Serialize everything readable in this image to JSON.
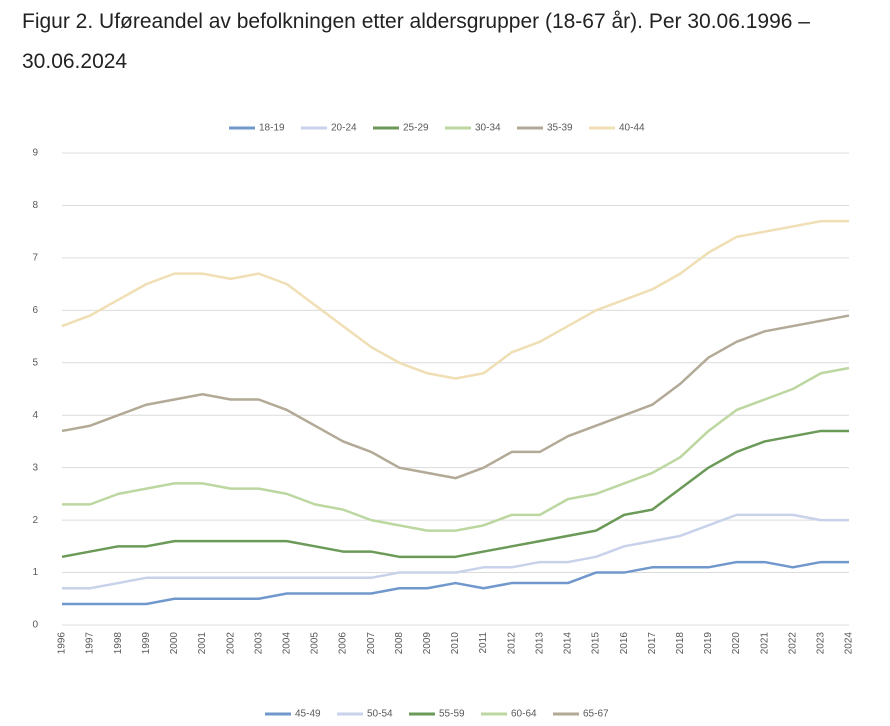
{
  "chart_data": [
    {
      "type": "line",
      "title": "Figur 2. Uføreandel av befolkningen etter aldersgrupper (18-67 år). Per 30.06.1996 – 30.06.2024",
      "x": [
        1996,
        1997,
        1998,
        1999,
        2000,
        2001,
        2002,
        2003,
        2004,
        2005,
        2006,
        2007,
        2008,
        2009,
        2010,
        2011,
        2012,
        2013,
        2014,
        2015,
        2016,
        2017,
        2018,
        2019,
        2020,
        2021,
        2022,
        2023,
        2024
      ],
      "xlim": [
        1996,
        2024
      ],
      "ylim": [
        0,
        9
      ],
      "yticks": [
        0,
        1,
        2,
        3,
        4,
        5,
        6,
        7,
        8,
        9
      ],
      "grid": true,
      "legend": "top",
      "series": [
        {
          "name": "18-19",
          "color": "#7098cc",
          "values": [
            0.4,
            0.4,
            0.4,
            0.4,
            0.5,
            0.5,
            0.5,
            0.5,
            0.6,
            0.6,
            0.6,
            0.6,
            0.7,
            0.7,
            0.8,
            0.7,
            0.8,
            0.8,
            0.8,
            1.0,
            1.0,
            1.1,
            1.1,
            1.1,
            1.2,
            1.2,
            1.1,
            1.2,
            1.2
          ]
        },
        {
          "name": "20-24",
          "color": "#c8d2ea",
          "values": [
            0.7,
            0.7,
            0.8,
            0.9,
            0.9,
            0.9,
            0.9,
            0.9,
            0.9,
            0.9,
            0.9,
            0.9,
            1.0,
            1.0,
            1.0,
            1.1,
            1.1,
            1.2,
            1.2,
            1.3,
            1.5,
            1.6,
            1.7,
            1.9,
            2.1,
            2.1,
            2.1,
            2.0,
            2.0
          ]
        },
        {
          "name": "25-29",
          "color": "#6b9a58",
          "values": [
            1.3,
            1.4,
            1.5,
            1.5,
            1.6,
            1.6,
            1.6,
            1.6,
            1.6,
            1.5,
            1.4,
            1.4,
            1.3,
            1.3,
            1.3,
            1.4,
            1.5,
            1.6,
            1.7,
            1.8,
            2.1,
            2.2,
            2.6,
            3.0,
            3.3,
            3.5,
            3.6,
            3.7,
            3.7
          ]
        },
        {
          "name": "30-34",
          "color": "#bcd7a0",
          "values": [
            2.3,
            2.3,
            2.5,
            2.6,
            2.7,
            2.7,
            2.6,
            2.6,
            2.5,
            2.3,
            2.2,
            2.0,
            1.9,
            1.8,
            1.8,
            1.9,
            2.1,
            2.1,
            2.4,
            2.5,
            2.7,
            2.9,
            3.2,
            3.7,
            4.1,
            4.3,
            4.5,
            4.8,
            4.9
          ]
        },
        {
          "name": "35-39",
          "color": "#b2aa96",
          "values": [
            3.7,
            3.8,
            4.0,
            4.2,
            4.3,
            4.4,
            4.3,
            4.3,
            4.1,
            3.8,
            3.5,
            3.3,
            3.0,
            2.9,
            2.8,
            3.0,
            3.3,
            3.3,
            3.6,
            3.8,
            4.0,
            4.2,
            4.6,
            5.1,
            5.4,
            5.6,
            5.7,
            5.8,
            5.9
          ]
        },
        {
          "name": "40-44",
          "color": "#f0deb4",
          "values": [
            5.7,
            5.9,
            6.2,
            6.5,
            6.7,
            6.7,
            6.6,
            6.7,
            6.5,
            6.1,
            5.7,
            5.3,
            5.0,
            4.8,
            4.7,
            4.8,
            5.2,
            5.4,
            5.7,
            6.0,
            6.2,
            6.4,
            6.7,
            7.1,
            7.4,
            7.5,
            7.6,
            7.7,
            7.7
          ]
        }
      ]
    },
    {
      "type": "line",
      "legend": "top",
      "series": [
        {
          "name": "45-49",
          "color": "#7098cc"
        },
        {
          "name": "50-54",
          "color": "#c8d2ea"
        },
        {
          "name": "55-59",
          "color": "#6b9a58"
        },
        {
          "name": "60-64",
          "color": "#bcd7a0"
        },
        {
          "name": "65-67",
          "color": "#b2aa96"
        }
      ]
    }
  ]
}
